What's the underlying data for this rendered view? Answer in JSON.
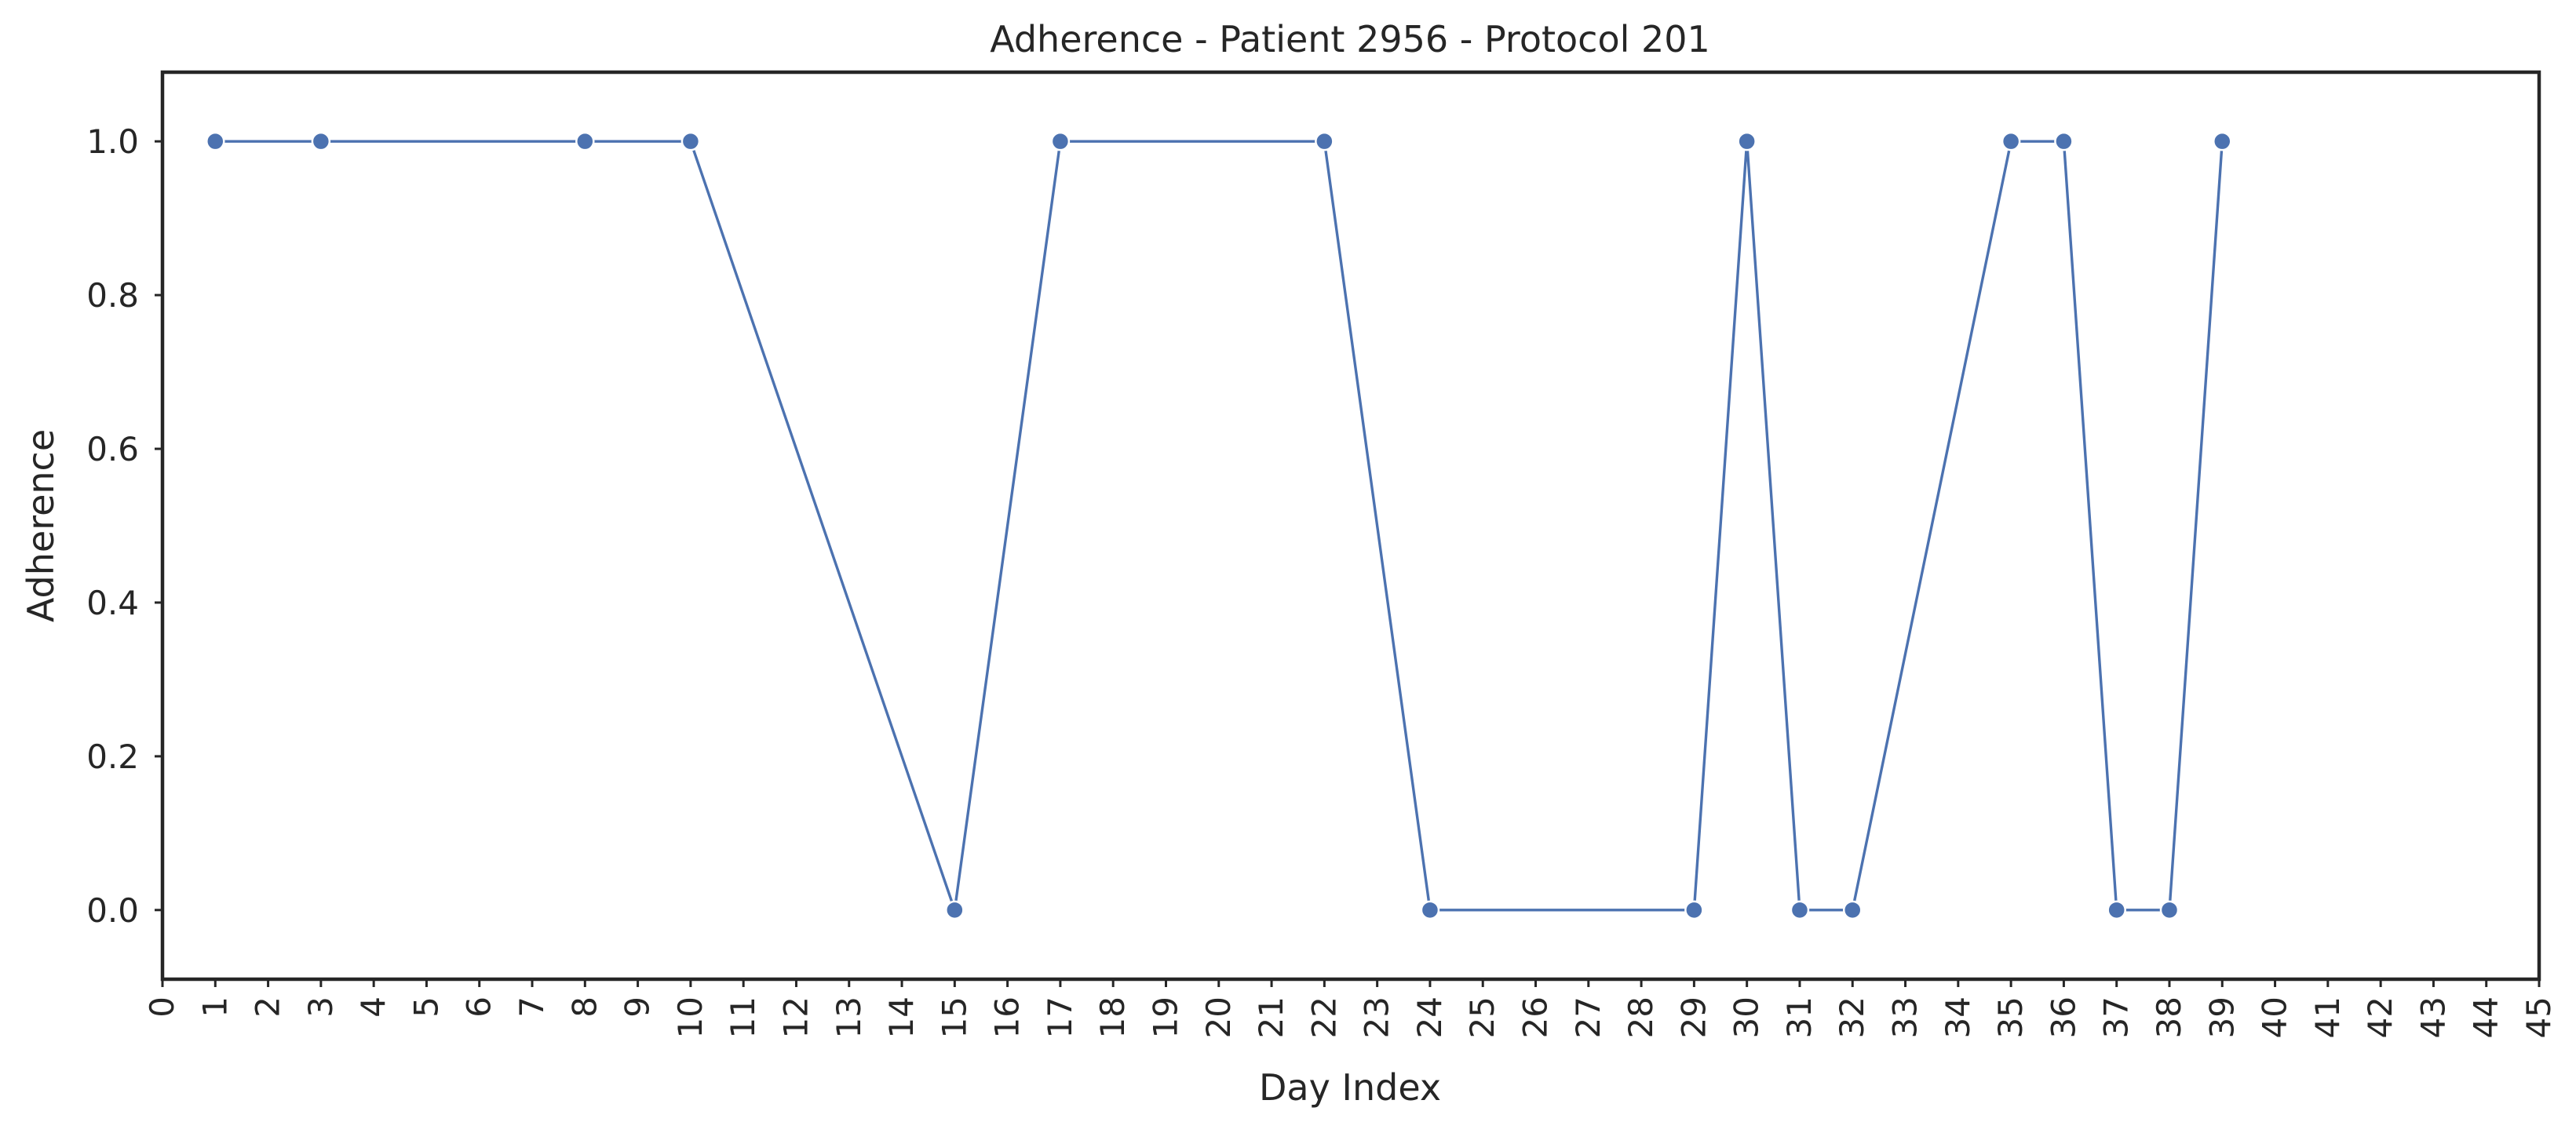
{
  "chart_data": {
    "type": "line",
    "title": "Adherence - Patient 2956 - Protocol 201",
    "xlabel": "Day Index",
    "ylabel": "Adherence",
    "xlim": [
      0,
      45
    ],
    "ylim": [
      -0.09,
      1.09
    ],
    "x_ticks": [
      0,
      1,
      2,
      3,
      4,
      5,
      6,
      7,
      8,
      9,
      10,
      11,
      12,
      13,
      14,
      15,
      16,
      17,
      18,
      19,
      20,
      21,
      22,
      23,
      24,
      25,
      26,
      27,
      28,
      29,
      30,
      31,
      32,
      33,
      34,
      35,
      36,
      37,
      38,
      39,
      40,
      41,
      42,
      43,
      44,
      45
    ],
    "y_ticks": [
      0.0,
      0.2,
      0.4,
      0.6,
      0.8,
      1.0
    ],
    "y_tick_labels": [
      "0.0",
      "0.2",
      "0.4",
      "0.6",
      "0.8",
      "1.0"
    ],
    "grid": false,
    "legend": "none",
    "series": [
      {
        "color": "#4c72b0",
        "marker": "circle",
        "x": [
          1,
          3,
          8,
          10,
          15,
          17,
          22,
          24,
          29,
          30,
          31,
          32,
          35,
          36,
          37,
          38,
          39
        ],
        "y": [
          1,
          1,
          1,
          1,
          0,
          1,
          1,
          0,
          0,
          1,
          0,
          0,
          1,
          1,
          0,
          0,
          1
        ]
      }
    ]
  }
}
